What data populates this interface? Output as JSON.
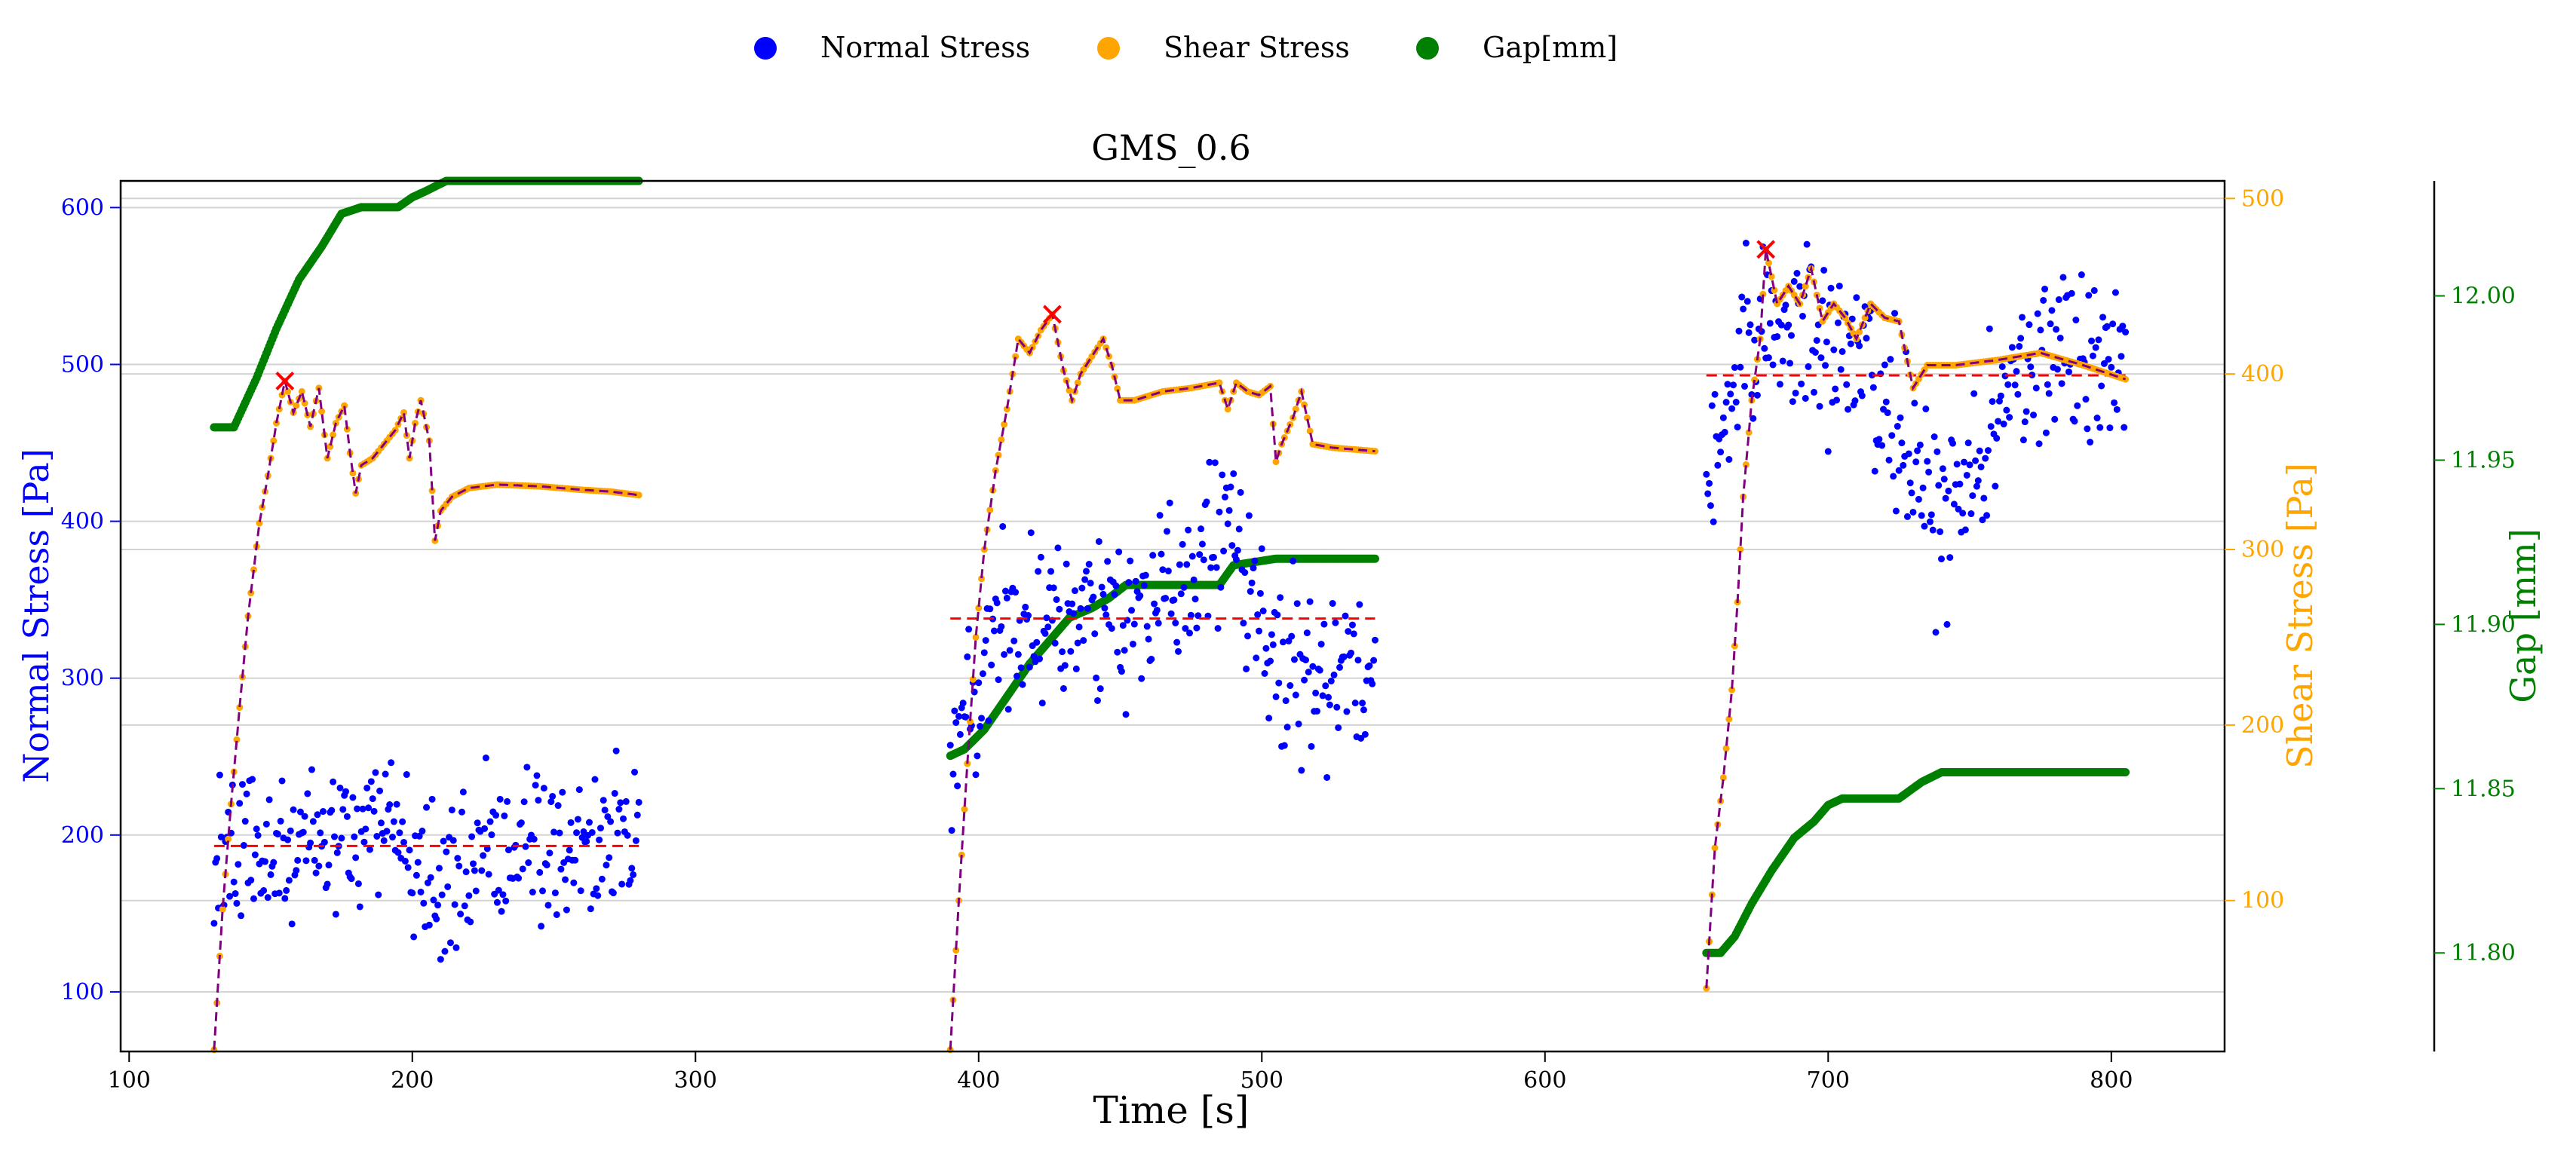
{
  "chart_data": {
    "type": "scatter",
    "title": "GMS_0.6",
    "xlabel": "Time [s]",
    "xlim": [
      97,
      840
    ],
    "x_ticks": [
      100,
      200,
      300,
      400,
      500,
      600,
      700,
      800
    ],
    "axes": {
      "normal": {
        "label": "Normal Stress [Pa]",
        "color": "#0000ff",
        "ylim": [
          62,
          617
        ],
        "ticks": [
          100,
          200,
          300,
          400,
          500,
          600
        ]
      },
      "shear": {
        "label": "Shear Stress [Pa]",
        "color": "#ffa500",
        "ylim": [
          14,
          510
        ],
        "ticks": [
          100,
          200,
          300,
          400,
          500
        ]
      },
      "gap": {
        "label": "Gap [mm]",
        "color": "#008000",
        "ylim": [
          11.77,
          12.035
        ],
        "ticks": [
          11.8,
          11.85,
          11.9,
          11.95,
          12.0
        ]
      }
    },
    "legend": {
      "placement": "top-center",
      "entries": [
        {
          "label": "Normal Stress",
          "color": "#0000ff"
        },
        {
          "label": "Shear Stress",
          "color": "#ffa500"
        },
        {
          "label": "Gap[mm]",
          "color": "#008000"
        }
      ]
    },
    "grid": "horizontal",
    "segments": [
      {
        "t_start": 130,
        "t_end": 280,
        "normal_mean": 193,
        "shear_peak": {
          "x": 155,
          "y": 396
        },
        "shear_path": [
          [
            130,
            15
          ],
          [
            133,
            95
          ],
          [
            136,
            155
          ],
          [
            139,
            210
          ],
          [
            142,
            262
          ],
          [
            146,
            315
          ],
          [
            149,
            342
          ],
          [
            152,
            372
          ],
          [
            155,
            396
          ],
          [
            158,
            378
          ],
          [
            161,
            390
          ],
          [
            164,
            370
          ],
          [
            167,
            392
          ],
          [
            170,
            352
          ],
          [
            173,
            372
          ],
          [
            176,
            382
          ],
          [
            178,
            355
          ],
          [
            180,
            332
          ],
          [
            182,
            348
          ],
          [
            186,
            352
          ],
          [
            190,
            360
          ],
          [
            194,
            368
          ],
          [
            197,
            378
          ],
          [
            199,
            352
          ],
          [
            201,
            372
          ],
          [
            203,
            385
          ],
          [
            206,
            362
          ],
          [
            208,
            305
          ],
          [
            210,
            322
          ],
          [
            214,
            330
          ],
          [
            220,
            335
          ],
          [
            230,
            337
          ],
          [
            245,
            336
          ],
          [
            260,
            334
          ],
          [
            270,
            333
          ],
          [
            280,
            331
          ]
        ],
        "normal_band": {
          "base": [
            [
              130,
              180
            ],
            [
              160,
              195
            ],
            [
              195,
              205
            ],
            [
              210,
              160
            ],
            [
              225,
              182
            ],
            [
              245,
              192
            ],
            [
              280,
              205
            ]
          ],
          "spread": 45
        },
        "gap_path": [
          [
            130,
            11.96
          ],
          [
            137,
            11.96
          ],
          [
            145,
            11.975
          ],
          [
            152,
            11.99
          ],
          [
            160,
            12.005
          ],
          [
            168,
            12.015
          ],
          [
            175,
            12.025
          ],
          [
            182,
            12.027
          ],
          [
            195,
            12.027
          ],
          [
            200,
            12.03
          ],
          [
            205,
            12.032
          ],
          [
            212,
            12.035
          ],
          [
            280,
            12.035
          ]
        ]
      },
      {
        "t_start": 390,
        "t_end": 540,
        "normal_mean": 338,
        "shear_peak": {
          "x": 426,
          "y": 434
        },
        "shear_path": [
          [
            390,
            15
          ],
          [
            393,
            100
          ],
          [
            396,
            178
          ],
          [
            399,
            250
          ],
          [
            402,
            300
          ],
          [
            406,
            345
          ],
          [
            410,
            380
          ],
          [
            414,
            420
          ],
          [
            418,
            412
          ],
          [
            422,
            425
          ],
          [
            426,
            434
          ],
          [
            430,
            402
          ],
          [
            433,
            385
          ],
          [
            436,
            400
          ],
          [
            440,
            410
          ],
          [
            444,
            420
          ],
          [
            447,
            405
          ],
          [
            450,
            385
          ],
          [
            455,
            385
          ],
          [
            465,
            390
          ],
          [
            475,
            392
          ],
          [
            485,
            395
          ],
          [
            488,
            380
          ],
          [
            491,
            395
          ],
          [
            495,
            390
          ],
          [
            499,
            388
          ],
          [
            503,
            393
          ],
          [
            505,
            350
          ],
          [
            507,
            360
          ],
          [
            511,
            375
          ],
          [
            514,
            390
          ],
          [
            518,
            360
          ],
          [
            525,
            358
          ],
          [
            540,
            356
          ]
        ],
        "normal_band": {
          "base": [
            [
              390,
              250
            ],
            [
              405,
              330
            ],
            [
              440,
              335
            ],
            [
              465,
              350
            ],
            [
              490,
              400
            ],
            [
              495,
              355
            ],
            [
              505,
              305
            ],
            [
              540,
              310
            ]
          ],
          "spread": 50
        },
        "gap_path": [
          [
            390,
            11.86
          ],
          [
            395,
            11.862
          ],
          [
            402,
            11.868
          ],
          [
            410,
            11.878
          ],
          [
            418,
            11.888
          ],
          [
            426,
            11.896
          ],
          [
            432,
            11.902
          ],
          [
            440,
            11.905
          ],
          [
            446,
            11.908
          ],
          [
            452,
            11.912
          ],
          [
            485,
            11.912
          ],
          [
            490,
            11.918
          ],
          [
            505,
            11.92
          ],
          [
            540,
            11.92
          ]
        ]
      },
      {
        "t_start": 657,
        "t_end": 805,
        "normal_mean": 493,
        "shear_peak": {
          "x": 678,
          "y": 471
        },
        "shear_path": [
          [
            657,
            50
          ],
          [
            660,
            130
          ],
          [
            663,
            170
          ],
          [
            666,
            220
          ],
          [
            668,
            270
          ],
          [
            670,
            330
          ],
          [
            673,
            385
          ],
          [
            676,
            420
          ],
          [
            678,
            471
          ],
          [
            682,
            440
          ],
          [
            686,
            450
          ],
          [
            690,
            440
          ],
          [
            694,
            460
          ],
          [
            698,
            430
          ],
          [
            702,
            440
          ],
          [
            706,
            432
          ],
          [
            710,
            420
          ],
          [
            715,
            440
          ],
          [
            720,
            432
          ],
          [
            725,
            430
          ],
          [
            730,
            392
          ],
          [
            735,
            405
          ],
          [
            745,
            405
          ],
          [
            760,
            408
          ],
          [
            775,
            412
          ],
          [
            790,
            405
          ],
          [
            805,
            397
          ]
        ],
        "normal_band": {
          "base": [
            [
              657,
              420
            ],
            [
              670,
              520
            ],
            [
              690,
              520
            ],
            [
              715,
              500
            ],
            [
              730,
              430
            ],
            [
              740,
              400
            ],
            [
              750,
              420
            ],
            [
              770,
              505
            ],
            [
              790,
              500
            ],
            [
              805,
              485
            ]
          ],
          "spread": 55
        },
        "gap_path": [
          [
            657,
            11.8
          ],
          [
            662,
            11.8
          ],
          [
            667,
            11.805
          ],
          [
            673,
            11.815
          ],
          [
            680,
            11.825
          ],
          [
            688,
            11.835
          ],
          [
            695,
            11.84
          ],
          [
            700,
            11.845
          ],
          [
            705,
            11.847
          ],
          [
            725,
            11.847
          ],
          [
            733,
            11.852
          ],
          [
            740,
            11.855
          ],
          [
            805,
            11.855
          ]
        ]
      }
    ]
  }
}
